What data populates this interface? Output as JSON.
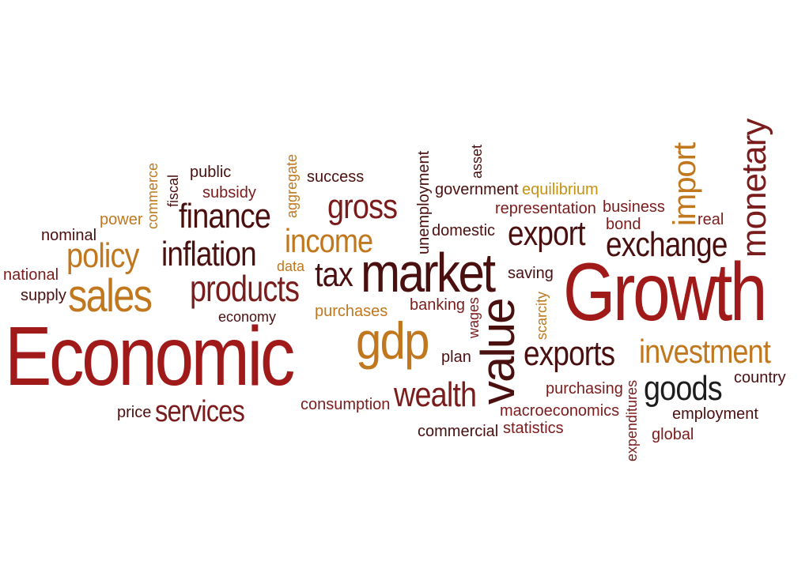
{
  "cloud": {
    "words": {
      "economic": "Economic",
      "growth": "Growth",
      "market": "market",
      "value": "value",
      "gdp": "gdp",
      "sales": "sales",
      "finance": "finance",
      "inflation": "inflation",
      "policy": "policy",
      "products": "products",
      "income": "income",
      "gross": "gross",
      "tax": "tax",
      "export": "export",
      "exchange": "exchange",
      "monetary": "monetary",
      "import": "import",
      "investment": "investment",
      "exports": "exports",
      "goods": "goods",
      "wealth": "wealth",
      "services": "services",
      "public": "public",
      "subsidy": "subsidy",
      "aggregate": "aggregate",
      "success": "success",
      "unemployment": "unemployment",
      "asset": "asset",
      "government": "government",
      "equilibrium": "equilibrium",
      "representation": "representation",
      "business": "business",
      "bond": "bond",
      "real": "real",
      "domestic": "domestic",
      "saving": "saving",
      "commerce": "commerce",
      "fiscal": "fiscal",
      "power": "power",
      "nominal": "nominal",
      "national": "national",
      "supply": "supply",
      "data": "data",
      "economy": "economy",
      "purchases": "purchases",
      "banking": "banking",
      "wages": "wages",
      "scarcity": "scarcity",
      "plan": "plan",
      "purchasing": "purchasing",
      "expenditures": "expenditures",
      "country": "country",
      "macroeconomics": "macroeconomics",
      "employment": "employment",
      "global": "global",
      "statistics": "statistics",
      "commercial": "commercial",
      "consumption": "consumption",
      "price": "price"
    },
    "colors": {
      "dark": "#4a0f0f",
      "red": "#a11a1a",
      "brown": "#7a1c1c",
      "gold": "#c0771d",
      "yellow": "#c69214",
      "black": "#1d1d1d"
    }
  }
}
